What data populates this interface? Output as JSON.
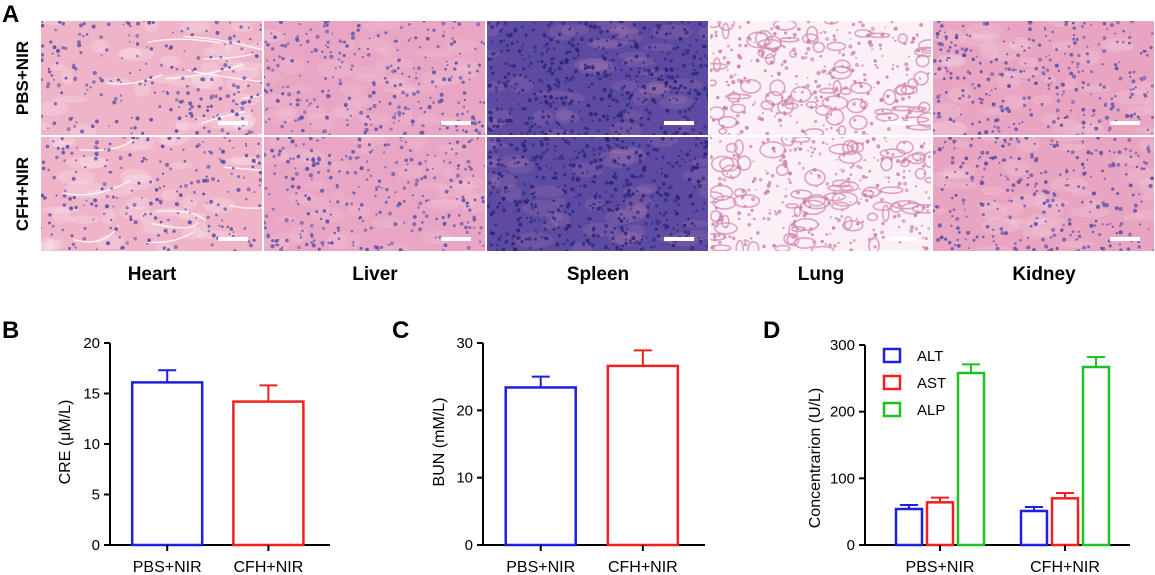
{
  "panel_a": {
    "letter": "A",
    "rows": [
      "PBS+NIR",
      "CFH+NIR"
    ],
    "organs": [
      "Heart",
      "Liver",
      "Spleen",
      "Lung",
      "Kidney"
    ],
    "tile_styles": [
      {
        "base": "#f0b4c8",
        "spot": "#5a4ea8",
        "streak": "#ffffff",
        "density": 0.25,
        "streaks": true
      },
      {
        "base": "#e8a6c4",
        "spot": "#5c52a8",
        "streak": "#f7d2e0",
        "density": 0.35,
        "streaks": false
      },
      {
        "base": "#5c4ba0",
        "spot": "#2c2478",
        "streak": "#c88ab8",
        "density": 0.9,
        "streaks": false
      },
      {
        "base": "#fbf0f5",
        "spot": "#c880a8",
        "streak": "#ffffff",
        "density": 0.35,
        "streaks": false,
        "lung": true
      },
      {
        "base": "#e8a4c0",
        "spot": "#5a4ea8",
        "streak": "#fbe6ef",
        "density": 0.4,
        "streaks": false
      }
    ],
    "scale_bar_color": "#ffffff"
  },
  "chart_data": [
    {
      "panel": "B",
      "type": "bar",
      "categories": [
        "PBS+NIR",
        "CFH+NIR"
      ],
      "values": [
        16.1,
        14.2
      ],
      "errors": [
        1.2,
        1.6
      ],
      "colors": [
        "#1f1fe0",
        "#f02020"
      ],
      "ylabel": "CRE (μM/L)",
      "ylim": [
        0,
        20
      ],
      "yticks": [
        "0",
        "5",
        "10",
        "15",
        "20"
      ]
    },
    {
      "panel": "C",
      "type": "bar",
      "categories": [
        "PBS+NIR",
        "CFH+NIR"
      ],
      "values": [
        23.4,
        26.6
      ],
      "errors": [
        1.6,
        2.3
      ],
      "colors": [
        "#1f1fe0",
        "#f02020"
      ],
      "ylabel": "BUN (mM/L)",
      "ylim": [
        0,
        30
      ],
      "yticks": [
        "0",
        "10",
        "20",
        "30"
      ]
    },
    {
      "panel": "D",
      "type": "bar",
      "categories": [
        "PBS+NIR",
        "CFH+NIR"
      ],
      "series": [
        {
          "name": "ALT",
          "color": "#1f1fe0",
          "values": [
            54,
            51
          ],
          "errors": [
            6,
            6
          ]
        },
        {
          "name": "AST",
          "color": "#f02020",
          "values": [
            64,
            70
          ],
          "errors": [
            7,
            8
          ]
        },
        {
          "name": "ALP",
          "color": "#20c020",
          "values": [
            258,
            267
          ],
          "errors": [
            13,
            15
          ]
        }
      ],
      "ylabel": "Concentrarion (U/L)",
      "ylim": [
        0,
        300
      ],
      "yticks": [
        "0",
        "100",
        "200",
        "300"
      ],
      "legend": "top-left"
    }
  ]
}
